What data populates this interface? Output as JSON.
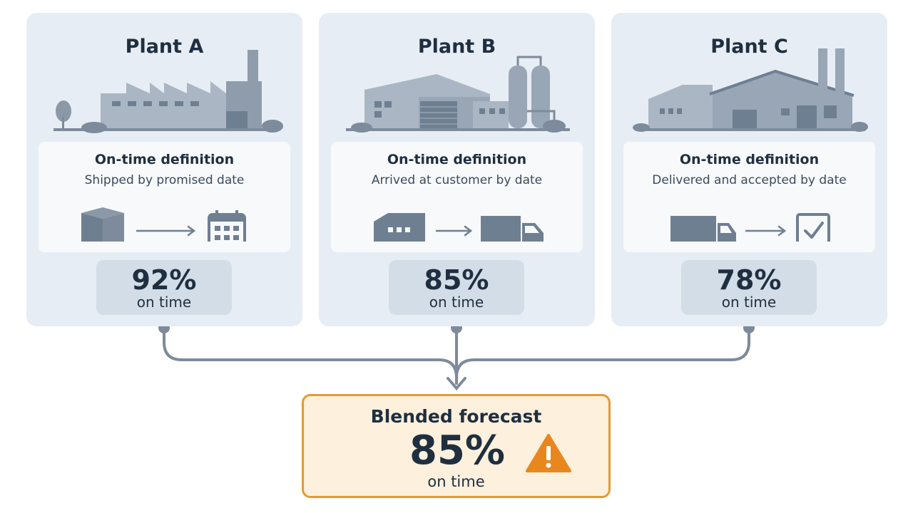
{
  "plants": [
    {
      "title": "Plant A",
      "definition_label": "On-time definition",
      "definition_text": "Shipped by promised date",
      "pct": "92%",
      "pct_unit": "on time",
      "icons": [
        "factory-icon",
        "box-icon",
        "arrow-right-icon",
        "calendar-icon"
      ]
    },
    {
      "title": "Plant B",
      "definition_label": "On-time definition",
      "definition_text": "Arrived at customer by date",
      "pct": "85%",
      "pct_unit": "on time",
      "icons": [
        "factory-icon",
        "warehouse-icon",
        "arrow-right-icon",
        "truck-icon"
      ]
    },
    {
      "title": "Plant C",
      "definition_label": "On-time definition",
      "definition_text": "Delivered and accepted by date",
      "pct": "78%",
      "pct_unit": "on time",
      "icons": [
        "factory-icon",
        "truck-icon",
        "arrow-right-icon",
        "checkbox-icon"
      ]
    }
  ],
  "forecast": {
    "title": "Blended forecast",
    "pct": "85%",
    "pct_unit": "on time",
    "icon": "warning-icon"
  },
  "colors": {
    "card_bg": "#e7edf4",
    "pct_box_bg": "#d2dde7",
    "icon_gray": "#6f7f92",
    "connector": "#7d8b9c",
    "forecast_border": "#e39a35",
    "forecast_bg": "#fdf0dc",
    "warning": "#e8871e",
    "text_dark": "#1f2f40"
  }
}
